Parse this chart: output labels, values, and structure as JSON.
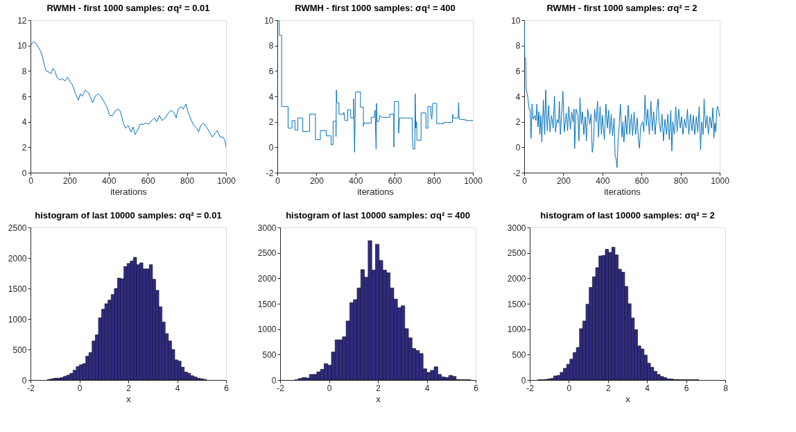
{
  "chart_data": [
    {
      "type": "line",
      "title": "RWMH - first 1000 samples: σq² = 0.01",
      "xlabel": "iterations",
      "xlim": [
        0,
        1000
      ],
      "xticks": [
        0,
        200,
        400,
        600,
        800,
        1000
      ],
      "ylim": [
        0,
        12
      ],
      "yticks": [
        0,
        2,
        4,
        6,
        8,
        10,
        12
      ],
      "color": "#0072bd",
      "x": [
        0,
        10,
        20,
        35,
        50,
        60,
        70,
        80,
        95,
        105,
        115,
        125,
        135,
        150,
        165,
        175,
        190,
        205,
        215,
        230,
        245,
        255,
        265,
        280,
        295,
        305,
        318,
        330,
        345,
        360,
        375,
        390,
        405,
        420,
        435,
        450,
        460,
        475,
        485,
        500,
        515,
        525,
        535,
        550,
        560,
        575,
        590,
        605,
        620,
        635,
        645,
        660,
        672,
        690,
        705,
        720,
        735,
        745,
        755,
        770,
        780,
        795,
        805,
        820,
        835,
        850,
        860,
        870,
        885,
        900,
        915,
        930,
        945,
        955,
        970,
        985,
        995,
        1000
      ],
      "values": [
        10,
        10.2,
        10.3,
        10,
        9.6,
        9.2,
        8.5,
        8,
        7.9,
        7.8,
        8.2,
        8,
        7.5,
        7.3,
        7.4,
        7.2,
        7.5,
        7.1,
        6.9,
        6.2,
        5.7,
        6.2,
        6,
        6.5,
        6.3,
        6,
        5.5,
        6,
        6.2,
        6,
        5.6,
        5.2,
        4.5,
        4.5,
        4.9,
        5,
        4.8,
        3.9,
        3.5,
        3.7,
        3.2,
        3.6,
        3,
        3.4,
        3.8,
        3.8,
        3.9,
        3.8,
        4.1,
        4.3,
        4,
        4.5,
        4.1,
        4.3,
        4.7,
        4.9,
        4.7,
        4.3,
        5,
        5.2,
        5,
        5.4,
        4.8,
        4.2,
        3.7,
        3.5,
        3.2,
        3.7,
        3.9,
        3.6,
        3.2,
        2.8,
        3.1,
        3.3,
        2.8,
        2.8,
        2.5,
        2
      ]
    },
    {
      "type": "line",
      "title": "RWMH - first 1000 samples: σq² = 400",
      "xlabel": "iterations",
      "xlim": [
        0,
        1000
      ],
      "xticks": [
        0,
        200,
        400,
        600,
        800,
        1000
      ],
      "ylim": [
        -2,
        10
      ],
      "yticks": [
        -2,
        0,
        2,
        4,
        6,
        8,
        10
      ],
      "color": "#0072bd",
      "x": [
        0,
        10,
        10,
        22,
        22,
        55,
        55,
        75,
        75,
        90,
        90,
        105,
        105,
        130,
        130,
        165,
        165,
        195,
        195,
        220,
        220,
        250,
        250,
        275,
        275,
        285,
        285,
        300,
        300,
        302,
        304,
        315,
        315,
        340,
        340,
        345,
        360,
        360,
        375,
        375,
        390,
        390,
        395,
        400,
        425,
        425,
        440,
        440,
        443,
        480,
        480,
        495,
        500,
        505,
        507,
        510,
        520,
        525,
        535,
        575,
        575,
        595,
        596,
        598,
        620,
        620,
        625,
        690,
        690,
        695,
        703,
        705,
        708,
        712,
        714,
        735,
        735,
        760,
        760,
        770,
        770,
        785,
        785,
        790,
        795,
        815,
        815,
        850,
        850,
        895,
        897,
        900,
        925,
        927,
        930,
        965,
        965,
        1000
      ],
      "values": [
        10,
        10,
        8.8,
        8.8,
        3.2,
        3.2,
        1.5,
        1.5,
        2.1,
        2.1,
        1.35,
        1.35,
        2.3,
        2.3,
        1.25,
        1.25,
        2.6,
        2.6,
        0.6,
        0.6,
        1.3,
        1.3,
        0.9,
        0.9,
        0.2,
        0.2,
        2.05,
        2.05,
        0.85,
        4.5,
        3.5,
        3.5,
        2.6,
        2.6,
        2.75,
        2.1,
        2.1,
        2.95,
        2.95,
        2.3,
        2.3,
        3.8,
        -0.4,
        4.35,
        4.35,
        3.15,
        3.15,
        1.65,
        1.9,
        1.9,
        2.35,
        2.35,
        2.9,
        -0.15,
        3.45,
        2,
        2.05,
        2.5,
        2.35,
        2.35,
        2.6,
        2.6,
        0,
        3.6,
        3.6,
        1.1,
        2.3,
        2.3,
        0.85,
        -0.15,
        -0.15,
        4.2,
        1.5,
        2,
        0.55,
        0.55,
        2.7,
        2.7,
        1.5,
        1.5,
        3.2,
        3.2,
        2.6,
        2.2,
        3.45,
        3.45,
        1.85,
        1.85,
        1.95,
        1.95,
        2.6,
        2.3,
        2.3,
        3.5,
        2.2,
        2.15,
        2.1,
        2.1
      ]
    },
    {
      "type": "line",
      "title": "RWMH - first 1000 samples: σq² = 2",
      "xlabel": "iterations",
      "xlim": [
        0,
        1000
      ],
      "xticks": [
        0,
        200,
        400,
        600,
        800,
        1000
      ],
      "ylim": [
        -2,
        10
      ],
      "yticks": [
        -2,
        0,
        2,
        4,
        6,
        8,
        10
      ],
      "color": "#0072bd",
      "x": [
        0,
        3,
        8,
        10,
        18,
        25,
        30,
        35,
        40,
        45,
        55,
        60,
        65,
        70,
        75,
        80,
        85,
        90,
        98,
        105,
        110,
        118,
        125,
        132,
        140,
        148,
        155,
        160,
        168,
        175,
        180,
        185,
        190,
        198,
        205,
        215,
        222,
        228,
        236,
        243,
        250,
        255,
        258,
        265,
        275,
        280,
        285,
        292,
        298,
        305,
        312,
        318,
        325,
        335,
        342,
        348,
        355,
        360,
        368,
        375,
        380,
        388,
        395,
        400,
        410,
        418,
        425,
        432,
        438,
        445,
        452,
        460,
        465,
        470,
        475,
        480,
        485,
        492,
        500,
        505,
        510,
        518,
        525,
        532,
        540,
        548,
        555,
        562,
        570,
        578,
        585,
        590,
        595,
        605,
        612,
        618,
        625,
        632,
        640,
        648,
        655,
        662,
        670,
        678,
        685,
        690,
        698,
        705,
        712,
        720,
        728,
        735,
        742,
        750,
        755,
        760,
        768,
        775,
        782,
        790,
        798,
        805,
        812,
        820,
        828,
        835,
        842,
        850,
        858,
        865,
        872,
        880,
        888,
        895,
        902,
        908,
        915,
        920,
        928,
        935,
        942,
        950,
        958,
        965,
        970,
        975,
        980,
        985,
        990,
        995,
        1000
      ],
      "values": [
        10,
        7,
        7,
        4.6,
        4,
        3,
        3,
        0.7,
        3.4,
        2.2,
        2.5,
        2.1,
        3.4,
        1.6,
        2.8,
        1,
        2.5,
        0.4,
        3.7,
        1,
        4.5,
        1.3,
        3.3,
        1.2,
        2.5,
        1.5,
        4,
        1.2,
        2.2,
        1.9,
        3.6,
        1,
        2.2,
        4.4,
        1.2,
        2.7,
        1.3,
        3.2,
        1.4,
        2.8,
        2,
        3,
        -0.1,
        3,
        2.5,
        0.5,
        3.9,
        1.8,
        2.8,
        1,
        2.4,
        0.5,
        3,
        1.8,
        2.6,
        -0.4,
        0.4,
        3,
        2,
        3.6,
        0.8,
        3.2,
        1,
        2.5,
        0.6,
        3.4,
        1.5,
        2.9,
        1,
        2.6,
        0.9,
        2.3,
        -0.7,
        -0.9,
        -1.6,
        0.5,
        1.5,
        3.4,
        0.8,
        2,
        0.4,
        2.5,
        1,
        3.3,
        1,
        2.6,
        0.9,
        2.8,
        1,
        2.3,
        0.4,
        -0.1,
        1.6,
        2,
        1.2,
        4.1,
        1.7,
        3,
        1,
        3.6,
        1.3,
        2.8,
        1,
        2.9,
        3.8,
        2,
        1.2,
        2.6,
        0.5,
        2.2,
        1,
        2.6,
        0.6,
        2.9,
        -0.3,
        2,
        1,
        3.2,
        1.2,
        3,
        1.5,
        2.4,
        1,
        2.2,
        1.5,
        3,
        1,
        2.6,
        1.3,
        2.5,
        1,
        2.4,
        1.2,
        3.2,
        -0.2,
        2,
        1,
        3.8,
        1.5,
        2.5,
        1,
        2.4,
        1.5,
        3.1,
        0.7,
        1.9,
        1.2,
        3,
        3.2,
        2.8,
        2.4
      ]
    },
    {
      "type": "histogram",
      "title": "histogram of last 10000 samples: σq² = 0.01",
      "xlabel": "x",
      "xlim": [
        -2,
        6
      ],
      "xticks": [
        -2,
        0,
        2,
        4,
        6
      ],
      "ylim": [
        0,
        2500
      ],
      "yticks": [
        0,
        500,
        1000,
        1500,
        2000,
        2500
      ],
      "color": "#2f2a85",
      "bins": [
        -1.3,
        -1.17,
        -1.04,
        -0.91,
        -0.78,
        -0.65,
        -0.52,
        -0.39,
        -0.26,
        -0.13,
        0,
        0.13,
        0.26,
        0.39,
        0.52,
        0.65,
        0.78,
        0.91,
        1.04,
        1.17,
        1.3,
        1.43,
        1.56,
        1.69,
        1.82,
        1.95,
        2.08,
        2.21,
        2.34,
        2.47,
        2.6,
        2.73,
        2.86,
        2.99,
        3.12,
        3.25,
        3.38,
        3.51,
        3.64,
        3.77,
        3.9,
        4.03,
        4.16,
        4.29,
        4.42,
        4.55,
        4.68,
        4.81,
        4.94,
        5.07,
        5.2
      ],
      "values": [
        10,
        20,
        30,
        30,
        40,
        60,
        80,
        110,
        160,
        220,
        250,
        270,
        390,
        450,
        640,
        740,
        1020,
        1160,
        1250,
        1310,
        1400,
        1500,
        1670,
        1660,
        1860,
        1910,
        1950,
        2010,
        1890,
        1920,
        1820,
        1820,
        1890,
        1650,
        1470,
        1200,
        950,
        760,
        640,
        500,
        330,
        310,
        210,
        130,
        110,
        70,
        50,
        30,
        20,
        10
      ]
    },
    {
      "type": "histogram",
      "title": "histogram of last 10000 samples: σq² = 400",
      "xlabel": "x",
      "xlim": [
        -2,
        6
      ],
      "xticks": [
        -2,
        0,
        2,
        4,
        6
      ],
      "ylim": [
        0,
        3000
      ],
      "yticks": [
        0,
        500,
        1000,
        1500,
        2000,
        2500,
        3000
      ],
      "color": "#2f2a85",
      "bins": [
        -1.4,
        -1.25,
        -1.1,
        -0.95,
        -0.8,
        -0.65,
        -0.5,
        -0.35,
        -0.2,
        -0.05,
        0.1,
        0.25,
        0.4,
        0.55,
        0.7,
        0.85,
        1,
        1.15,
        1.3,
        1.45,
        1.6,
        1.75,
        1.9,
        2.05,
        2.2,
        2.35,
        2.5,
        2.65,
        2.8,
        2.95,
        3.1,
        3.25,
        3.4,
        3.55,
        3.7,
        3.85,
        4,
        4.15,
        4.3,
        4.45,
        4.6,
        4.75,
        4.9,
        5.05,
        5.2,
        5.35,
        5.5,
        5.65,
        5.8
      ],
      "values": [
        5,
        30,
        50,
        40,
        110,
        110,
        160,
        210,
        320,
        290,
        550,
        790,
        790,
        850,
        1160,
        1520,
        1580,
        1810,
        2170,
        2020,
        2740,
        2160,
        2670,
        2350,
        2160,
        2110,
        1810,
        1590,
        1420,
        1460,
        1010,
        830,
        620,
        580,
        520,
        220,
        150,
        190,
        260,
        110,
        60,
        50,
        90,
        70,
        10,
        5,
        5,
        5
      ]
    },
    {
      "type": "histogram",
      "title": "histogram of last 10000 samples: σq² = 2",
      "xlabel": "x",
      "xlim": [
        -2,
        8
      ],
      "xticks": [
        -2,
        0,
        2,
        4,
        6,
        8
      ],
      "ylim": [
        0,
        3000
      ],
      "yticks": [
        0,
        500,
        1000,
        1500,
        2000,
        2500,
        3000
      ],
      "color": "#2f2a85",
      "bins": [
        -1.6,
        -1.435,
        -1.27,
        -1.105,
        -0.94,
        -0.775,
        -0.61,
        -0.445,
        -0.28,
        -0.115,
        0.05,
        0.215,
        0.38,
        0.545,
        0.71,
        0.875,
        1.04,
        1.205,
        1.37,
        1.535,
        1.7,
        1.865,
        2.03,
        2.195,
        2.36,
        2.525,
        2.69,
        2.855,
        3.02,
        3.185,
        3.35,
        3.515,
        3.68,
        3.845,
        4.01,
        4.175,
        4.34,
        4.505,
        4.67,
        4.835,
        5,
        5.165,
        5.33,
        5.495,
        5.66,
        5.825,
        5.99,
        6.155,
        6.32,
        6.485,
        6.65
      ],
      "values": [
        5,
        5,
        10,
        20,
        30,
        80,
        90,
        150,
        230,
        310,
        410,
        540,
        640,
        1010,
        1160,
        1490,
        1820,
        2030,
        2210,
        2440,
        2450,
        2570,
        2510,
        2610,
        2460,
        2180,
        2120,
        1840,
        1500,
        1220,
        990,
        670,
        610,
        490,
        330,
        250,
        170,
        110,
        70,
        50,
        20,
        20,
        10,
        10,
        5,
        5,
        5,
        5,
        5,
        5
      ]
    }
  ]
}
